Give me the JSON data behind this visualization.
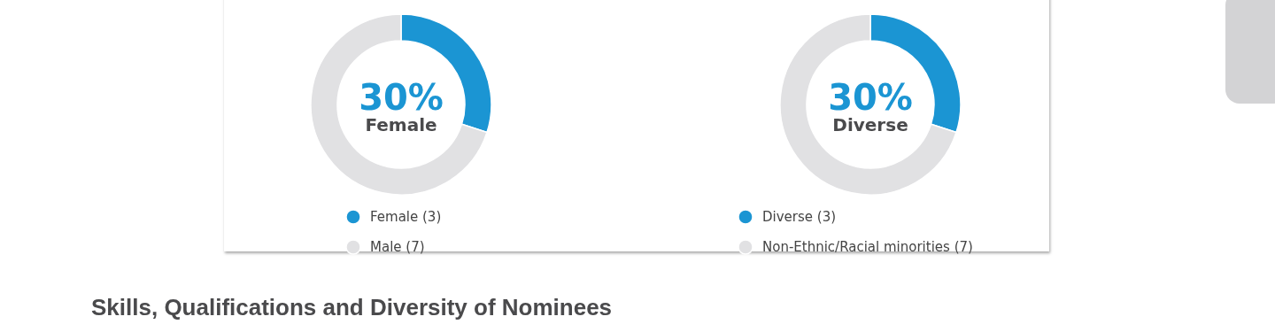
{
  "chart_data": [
    {
      "type": "donut",
      "categories": [
        "Female (3)",
        "Male (7)"
      ],
      "values": [
        3,
        7
      ],
      "colors": [
        "#1b95d3",
        "#e1e1e3"
      ],
      "legend": "bottom",
      "annotations": [
        "30%",
        "Female"
      ]
    },
    {
      "type": "donut",
      "categories": [
        "Diverse (3)",
        "Non-Ethnic/Racial minorities (7)"
      ],
      "values": [
        3,
        7
      ],
      "colors": [
        "#1b95d3",
        "#e1e1e3"
      ],
      "legend": "bottom",
      "annotations": [
        "30%",
        "Diverse",
        "Skills, Qualifications and Diversity of Nominees"
      ]
    }
  ]
}
